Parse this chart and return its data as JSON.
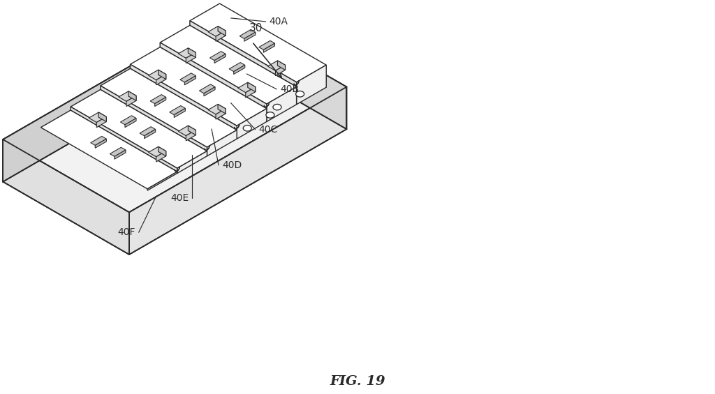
{
  "title": "FIG. 19",
  "title_fontsize": 14,
  "title_fontweight": "bold",
  "title_fontstyle": "italic",
  "background_color": "#ffffff",
  "line_color": "#2a2a2a",
  "line_width": 1.2,
  "label_30": "30",
  "label_40A": "40A",
  "label_40B": "40B",
  "label_40C": "40C",
  "label_40D": "40D",
  "label_40E": "40E",
  "label_40F": "40F",
  "label_fontsize": 10
}
